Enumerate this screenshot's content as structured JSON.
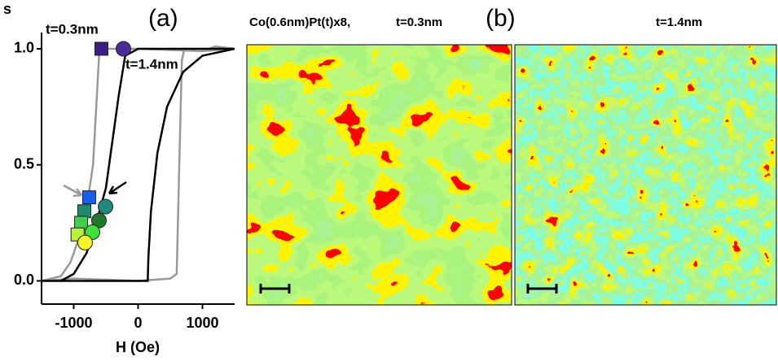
{
  "chart_data": {
    "type": "line",
    "y_title": "s",
    "x_title": "H (Oe)",
    "panel_a": "(a)",
    "panel_b": "(b)",
    "image_header": "Co(0.6nm)Pt(t)x8,",
    "image_left_title": "t=0.3nm",
    "image_right_title": "t=1.4nm",
    "xlim": [
      -1500,
      1500
    ],
    "ylim": [
      -0.1,
      1.07
    ],
    "xticks": [
      -1000,
      0,
      1000
    ],
    "yticks": [
      {
        "value": 0,
        "label": "0.0"
      },
      {
        "value": 0.5,
        "label": "0.5"
      },
      {
        "value": 1,
        "label": "1.0"
      }
    ],
    "series": [
      {
        "name": "t=0.3nm",
        "color": "#999999",
        "x": [
          1500,
          1000,
          0,
          -600,
          -640,
          -700,
          -780,
          -900,
          -1050,
          -1200,
          -1500,
          -1000,
          0,
          500,
          600,
          640,
          680,
          720,
          1000,
          1200,
          1500
        ],
        "values": [
          1.0,
          0.99,
          1.0,
          1.0,
          0.8,
          0.5,
          0.35,
          0.2,
          0.08,
          0.02,
          0,
          0.01,
          0,
          0.01,
          0.03,
          0.5,
          0.95,
          1.0,
          0.99,
          1.01,
          1.0
        ]
      },
      {
        "name": "t=1.4nm",
        "color": "#000000",
        "x": [
          1500,
          0,
          -200,
          -300,
          -400,
          -500,
          -650,
          -800,
          -1000,
          -1200,
          -1500,
          -500,
          150,
          160,
          200,
          300,
          450,
          700,
          1000,
          1500
        ],
        "values": [
          1.0,
          1.0,
          0.97,
          0.8,
          0.6,
          0.4,
          0.25,
          0.12,
          0.03,
          0,
          0,
          0,
          0,
          0.1,
          0.3,
          0.55,
          0.75,
          0.9,
          0.97,
          1.0
        ]
      }
    ],
    "markers": [
      {
        "shape": "square",
        "color": "#3b1d8a",
        "x": -570,
        "y": 1.0
      },
      {
        "shape": "square",
        "color": "#1a5ef0",
        "x": -760,
        "y": 0.36
      },
      {
        "shape": "square",
        "color": "#1e8a6e",
        "x": -835,
        "y": 0.3
      },
      {
        "shape": "square",
        "color": "#3fcf4a",
        "x": -885,
        "y": 0.25
      },
      {
        "shape": "square",
        "color": "#b8f03a",
        "x": -940,
        "y": 0.2
      },
      {
        "shape": "circle",
        "color": "#4b2a9c",
        "x": -228,
        "y": 1.0
      },
      {
        "shape": "circle",
        "color": "#1d8a7a",
        "x": -506,
        "y": 0.32
      },
      {
        "shape": "circle",
        "color": "#1e7a28",
        "x": -608,
        "y": 0.26
      },
      {
        "shape": "circle",
        "color": "#3ee23a",
        "x": -709,
        "y": 0.21
      },
      {
        "shape": "circle",
        "color": "#f5f52a",
        "x": -823,
        "y": 0.165
      }
    ]
  }
}
